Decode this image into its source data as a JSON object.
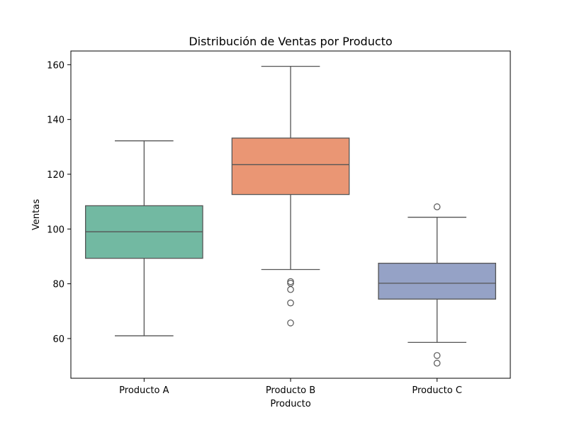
{
  "chart_data": {
    "type": "box",
    "title": "Distribución de Ventas por Producto",
    "xlabel": "Producto",
    "ylabel": "Ventas",
    "ylim": [
      45.5,
      165
    ],
    "yticks": [
      60,
      80,
      100,
      120,
      140,
      160
    ],
    "grid": false,
    "legend": "none",
    "categories": [
      "Producto A",
      "Producto B",
      "Producto C"
    ],
    "series": [
      {
        "category": "Producto A",
        "color": "#72b9a2",
        "whisker_low": 61,
        "q1": 89.3,
        "median": 99,
        "q3": 108.5,
        "whisker_high": 132.2,
        "outliers": []
      },
      {
        "category": "Producto B",
        "color": "#ea9674",
        "whisker_low": 85.2,
        "q1": 112.6,
        "median": 123.5,
        "q3": 133.2,
        "whisker_high": 159.4,
        "outliers": [
          80.8,
          80.2,
          77.9,
          73,
          65.7
        ]
      },
      {
        "category": "Producto C",
        "color": "#95a2c6",
        "whisker_low": 58.6,
        "q1": 74.4,
        "median": 80.2,
        "q3": 87.5,
        "whisker_high": 104.3,
        "outliers": [
          108.1,
          53.8,
          51
        ]
      }
    ]
  }
}
